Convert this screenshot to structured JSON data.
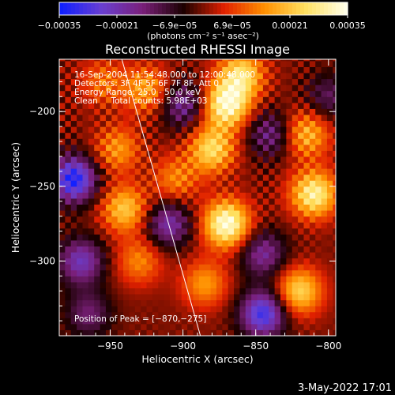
{
  "chart_data": {
    "type": "heatmap",
    "title": "Reconstructed RHESSI Image",
    "xlabel": "Heliocentric X (arcsec)",
    "ylabel": "Heliocentric Y (arcsec)",
    "xlim": [
      -985,
      -795
    ],
    "ylim": [
      -350,
      -165
    ],
    "x_ticks": [
      -950,
      -900,
      -850,
      -800
    ],
    "y_ticks": [
      -200,
      -250,
      -300
    ],
    "x_tick_labels": [
      "−950",
      "−900",
      "−850",
      "−800"
    ],
    "y_tick_labels": [
      "−200",
      "−250",
      "−300"
    ],
    "colorbar": {
      "range": [
        -0.00035,
        0.00035
      ],
      "tick_labels": [
        "−0.00035",
        "−0.00021",
        "−6.9e−05",
        "6.9e−05",
        "0.00021",
        "0.00035"
      ],
      "unit_label": "(photons cm⁻² s⁻¹ asec⁻²)",
      "colors": [
        "#1020ff",
        "#6a3fd0",
        "#7a1f7a",
        "#1a0000",
        "#e02000",
        "#ff9000",
        "#ffe060",
        "#ffffe8"
      ]
    },
    "annotations": [
      "16-Sep-2004 11:54:48.000 to 12:00:48.000",
      "Detectors: 3F 4F 5F 6F 7F 8F, Att 0",
      "Energy Range: 25.0 - 50.0 keV",
      "Clean     Total counts: 5.98E+03"
    ],
    "peak_label": "Position of Peak = [−870,−275]",
    "peak": [
      -870,
      -275
    ],
    "limb_line": [
      [
        -942,
        -165
      ],
      [
        -888,
        -350
      ]
    ],
    "hotspots": [
      {
        "x": -870,
        "y": -275,
        "value": 0.00035
      },
      {
        "x": -870,
        "y": -195,
        "value": 0.00033
      },
      {
        "x": -880,
        "y": -225,
        "value": 0.00025
      },
      {
        "x": -860,
        "y": -175,
        "value": 0.00025
      },
      {
        "x": -810,
        "y": -255,
        "value": 0.0003
      },
      {
        "x": -815,
        "y": -215,
        "value": 0.0002
      },
      {
        "x": -820,
        "y": -320,
        "value": 0.00024
      },
      {
        "x": -940,
        "y": -265,
        "value": 0.00022
      },
      {
        "x": -945,
        "y": -225,
        "value": 0.00016
      },
      {
        "x": -925,
        "y": -185,
        "value": 0.00018
      },
      {
        "x": -930,
        "y": -300,
        "value": 0.00014
      },
      {
        "x": -885,
        "y": -315,
        "value": 0.00016
      },
      {
        "x": -905,
        "y": -245,
        "value": 0.00014
      },
      {
        "x": -955,
        "y": -180,
        "value": 0.00012
      }
    ],
    "coldspots": [
      {
        "x": -975,
        "y": -245,
        "value": -0.00033
      },
      {
        "x": -970,
        "y": -300,
        "value": -0.00022
      },
      {
        "x": -910,
        "y": -275,
        "value": -0.0002
      },
      {
        "x": -900,
        "y": -195,
        "value": -0.00018
      },
      {
        "x": -845,
        "y": -335,
        "value": -0.0003
      },
      {
        "x": -845,
        "y": -295,
        "value": -0.00018
      },
      {
        "x": -840,
        "y": -215,
        "value": -0.00016
      },
      {
        "x": -965,
        "y": -335,
        "value": -0.00014
      },
      {
        "x": -800,
        "y": -190,
        "value": -0.00012
      }
    ]
  },
  "footer": {
    "timestamp": "3-May-2022 17:01"
  }
}
